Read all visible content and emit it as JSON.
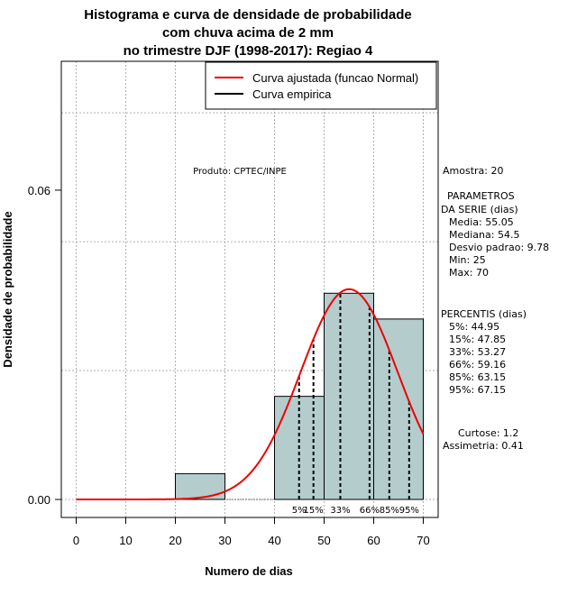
{
  "chart_data": {
    "type": "bar",
    "title_lines": [
      "Histograma e curva de densidade de probabilidade",
      "com chuva acima de 2 mm",
      "no trimestre DJF (1998-2017): Regiao 4"
    ],
    "xlabel": "Numero de dias",
    "ylabel": "Densidade de probabilidade",
    "xlim": [
      -3,
      73
    ],
    "ylim": [
      -0.0035,
      0.085
    ],
    "x_ticks": [
      "0",
      "10",
      "20",
      "30",
      "40",
      "50",
      "60",
      "70"
    ],
    "y_ticks": [
      "0.00",
      "0.06"
    ],
    "grid": true,
    "bins": [
      {
        "start": 20,
        "end": 30,
        "density": 0.005
      },
      {
        "start": 40,
        "end": 50,
        "density": 0.02
      },
      {
        "start": 50,
        "end": 60,
        "density": 0.04
      },
      {
        "start": 60,
        "end": 70,
        "density": 0.035
      }
    ],
    "bar_color": "#b4cccc",
    "normal_curve": {
      "mean": 55.05,
      "sd": 9.78,
      "x_range": [
        0,
        70
      ],
      "color": "#ee0000"
    },
    "percentile_lines": [
      44.95,
      47.85,
      53.27,
      59.16,
      63.15,
      67.15
    ],
    "percentile_labels": [
      {
        "text": "5%",
        "x": 44.95
      },
      {
        "text": "15%",
        "x": 47.85
      },
      {
        "text": "33%",
        "x": 53.27
      },
      {
        "text": "66%",
        "x": 59.16
      },
      {
        "text": "85%",
        "x": 63.15
      },
      {
        "text": "95%",
        "x": 67.15
      }
    ],
    "legend": {
      "placement": "top-right",
      "entries": [
        {
          "label": "Curva ajustada (funcao Normal)",
          "color": "#ee0000"
        },
        {
          "label": "Curva empirica",
          "color": "#000000"
        }
      ]
    },
    "annotation": "Produto: CPTEC/INPE"
  },
  "side_panel": {
    "amostra": "Amostra: 20",
    "param_title_1": "PARAMETROS",
    "param_title_2": "DA SERIE (dias)",
    "media": "Media: 55.05",
    "mediana": "Mediana: 54.5",
    "desvio": "Desvio padrao: 9.78",
    "min": "Min: 25",
    "max": "Max: 70",
    "percentis_title": "PERCENTIS (dias)",
    "p5": "5%: 44.95",
    "p15": "15%: 47.85",
    "p33": "33%: 53.27",
    "p66": "66%: 59.16",
    "p85": "85%: 63.15",
    "p95": "95%: 67.15",
    "curtose": "Curtose: 1.2",
    "assimetria": "Assimetria: 0.41"
  }
}
